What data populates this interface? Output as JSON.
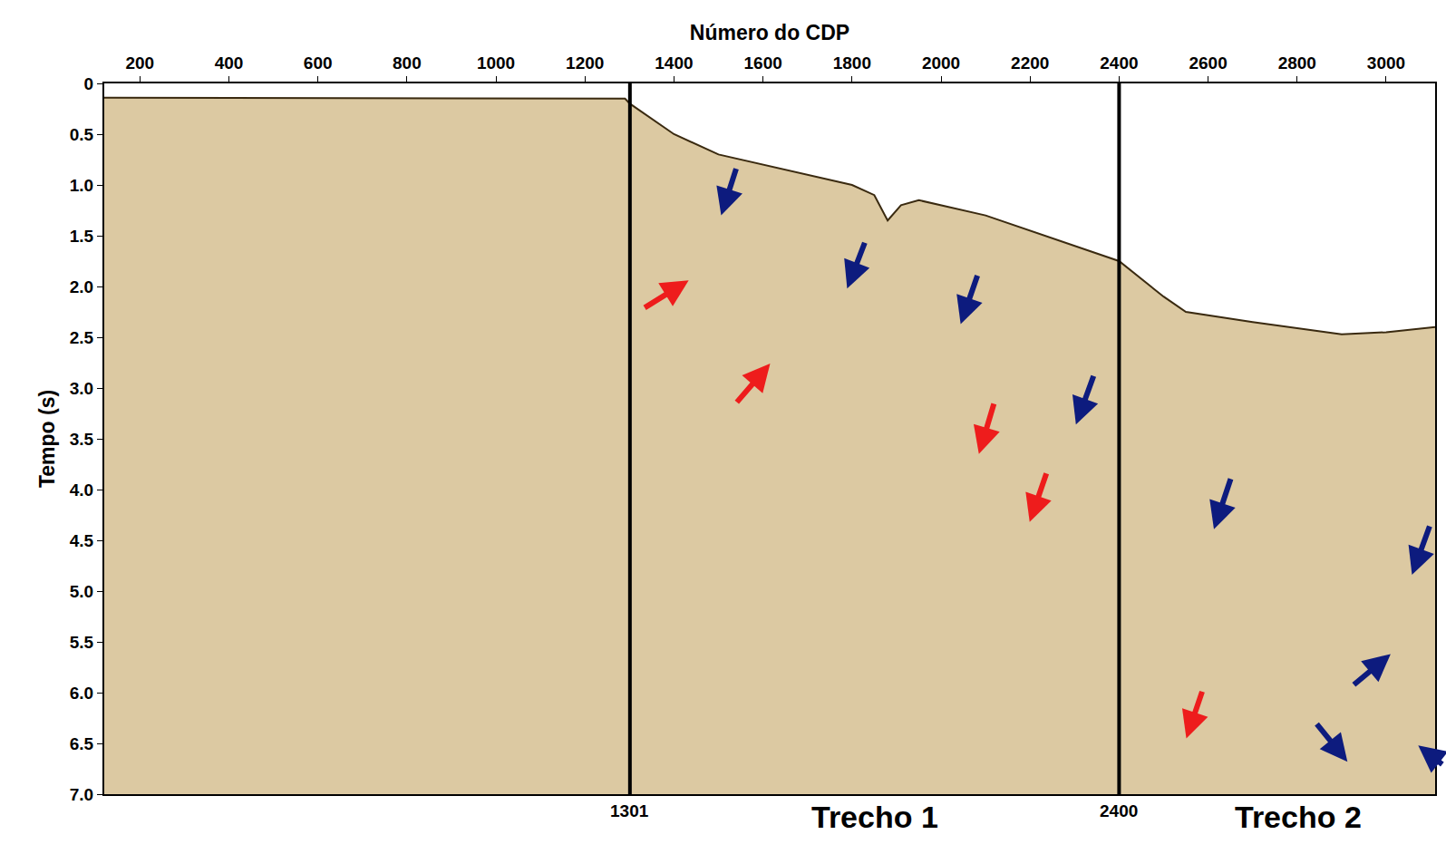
{
  "chart_data": {
    "type": "line",
    "x_label": "Número do CDP",
    "y_label": "Tempo (s)",
    "x": [
      120,
      1290,
      1301,
      1350,
      1400,
      1500,
      1600,
      1700,
      1800,
      1850,
      1880,
      1910,
      1950,
      2100,
      2200,
      2300,
      2400,
      2500,
      2550,
      2700,
      2900,
      3000,
      3110
    ],
    "values": [
      0.14,
      0.15,
      0.2,
      0.35,
      0.5,
      0.7,
      0.8,
      0.9,
      1.0,
      1.1,
      1.35,
      1.2,
      1.15,
      1.3,
      1.45,
      1.6,
      1.75,
      2.1,
      2.25,
      2.35,
      2.47,
      2.45,
      2.4
    ],
    "color": "#dcc9a2",
    "xlim": [
      120,
      3110
    ],
    "xticks": [
      200,
      400,
      600,
      800,
      1000,
      1200,
      1400,
      1600,
      1800,
      2000,
      2200,
      2400,
      2600,
      2800,
      3000
    ],
    "ylim": [
      7,
      0
    ],
    "yticks": [
      0,
      0.5,
      {
        "value": 1,
        "label": "1.0"
      },
      1.5,
      {
        "value": 2,
        "label": "2.0"
      },
      2.5,
      {
        "value": 3,
        "label": "3.0"
      },
      3.5,
      {
        "value": 4,
        "label": "4.0"
      },
      4.5,
      {
        "value": 5,
        "label": "5.0"
      },
      5.5,
      {
        "value": 6,
        "label": "6.0"
      },
      6.5,
      {
        "value": 7,
        "label": "7.0"
      }
    ],
    "grid": false,
    "boundaries": [
      1301,
      2400
    ],
    "annotations": [
      {
        "x": 1852,
        "text": "Trecho 1"
      },
      {
        "x": 2803,
        "text": "Trecho 2"
      }
    ],
    "arrows": [
      {
        "x": 1506,
        "y": 1.3,
        "color": "#0d1b7e"
      },
      {
        "x": 1789,
        "y": 2.02,
        "color": "#0d1b7e"
      },
      {
        "x": 2044,
        "y": 2.37,
        "color": "#0d1b7e"
      },
      {
        "x": 2303,
        "y": 3.36,
        "color": "#0d1b7e"
      },
      {
        "x": 1433,
        "y": 1.94,
        "color": "#ee1c1c"
      },
      {
        "x": 1616,
        "y": 2.76,
        "color": "#ee1c1c"
      },
      {
        "x": 2085,
        "y": 3.65,
        "color": "#ee1c1c"
      },
      {
        "x": 2199,
        "y": 4.32,
        "color": "#ee1c1c"
      },
      {
        "x": 2613,
        "y": 4.39,
        "color": "#0d1b7e"
      },
      {
        "x": 3058,
        "y": 4.84,
        "color": "#0d1b7e"
      },
      {
        "x": 3010,
        "y": 5.62,
        "color": "#0d1b7e"
      },
      {
        "x": 2551,
        "y": 6.45,
        "color": "#ee1c1c"
      },
      {
        "x": 2913,
        "y": 6.68,
        "color": "#0d1b7e"
      },
      {
        "x": 3072,
        "y": 6.52,
        "color": "#0d1b7e"
      }
    ]
  }
}
